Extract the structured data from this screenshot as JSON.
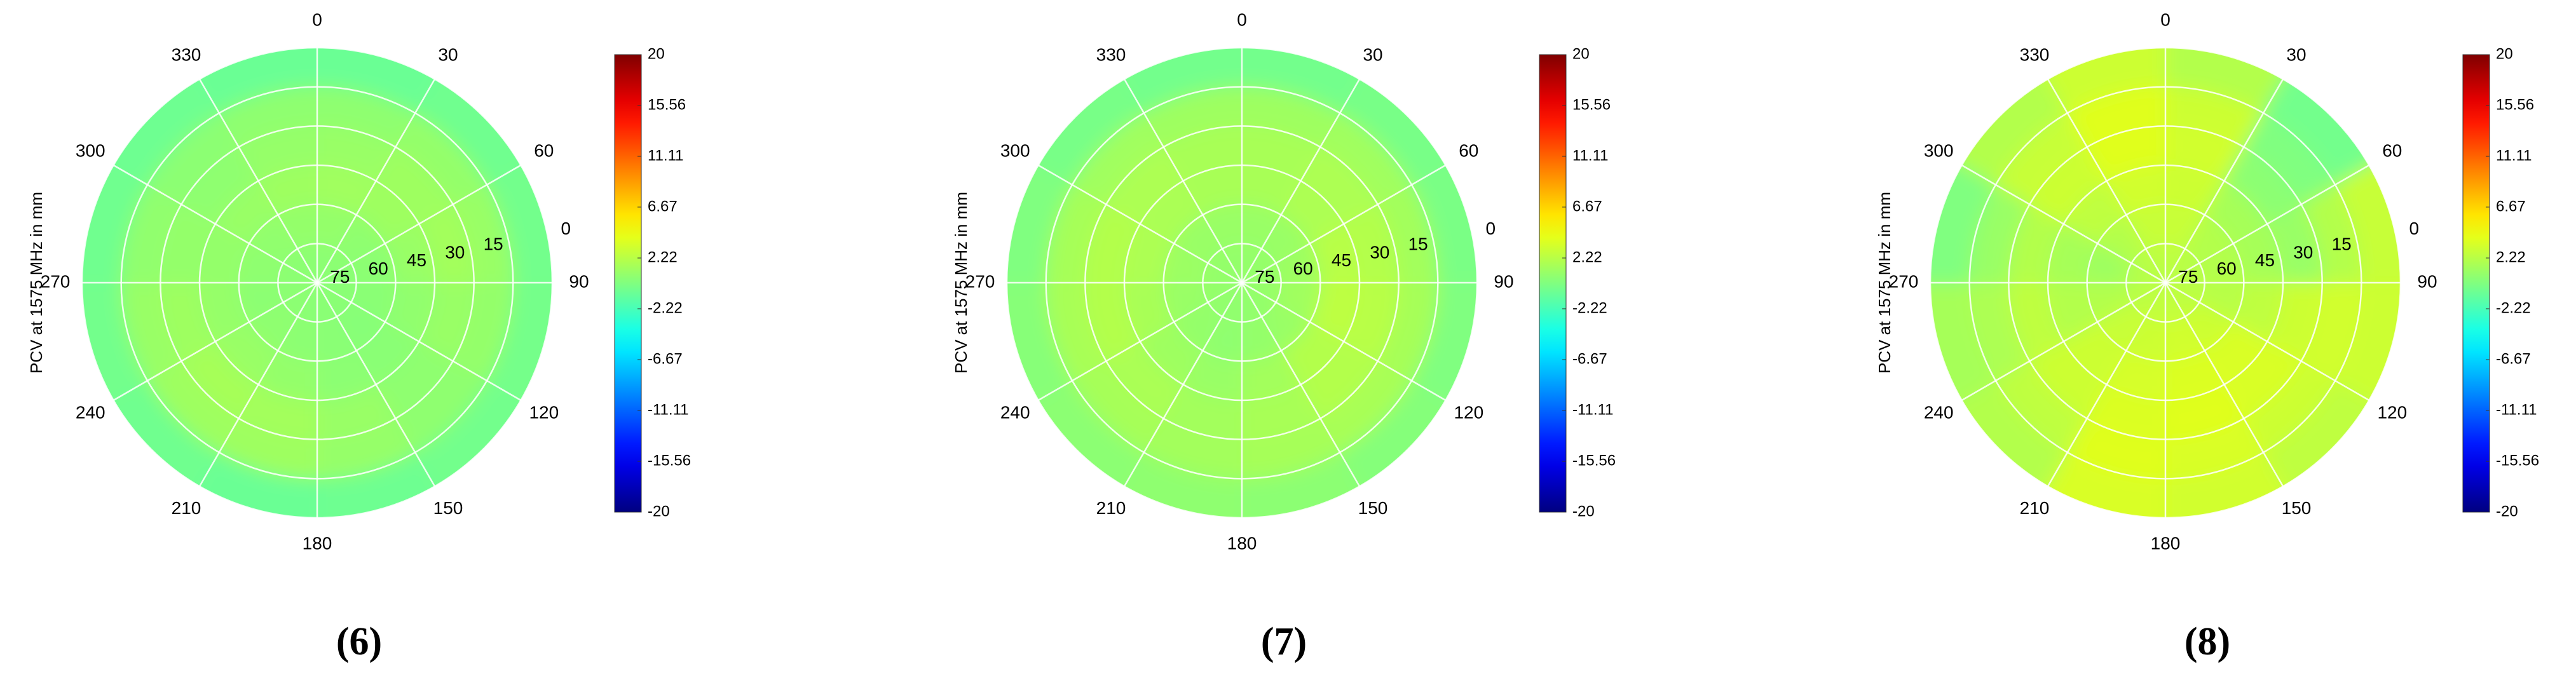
{
  "chart_data": [
    {
      "type": "polar_heatmap",
      "caption": "(6)",
      "ylabel": "PCV at 1575 MHz in mm",
      "colormap": "jet",
      "grid": true,
      "azimuth_ticks": [
        0,
        30,
        60,
        90,
        120,
        150,
        180,
        210,
        240,
        270,
        300,
        330
      ],
      "elevation_ticks": [
        0,
        15,
        30,
        45,
        60,
        75
      ],
      "rlim": [
        90,
        0
      ],
      "zlim": [
        -20,
        20
      ],
      "zticks": [
        20,
        15.56,
        11.11,
        6.67,
        2.22,
        -2.22,
        -6.67,
        -11.11,
        -15.56,
        -20
      ],
      "values": [
        [
          -0.8,
          -0.6,
          -0.5,
          -0.4,
          -0.5,
          -0.7,
          -0.8,
          -0.6,
          -0.5,
          -0.6,
          -0.7,
          -0.8
        ],
        [
          0.6,
          0.8,
          1.0,
          0.8,
          0.6,
          0.9,
          1.2,
          1.2,
          1.0,
          0.7,
          0.5,
          0.6
        ],
        [
          1.0,
          1.2,
          1.4,
          1.0,
          0.6,
          1.0,
          1.4,
          1.5,
          1.2,
          0.8,
          0.6,
          0.9
        ],
        [
          1.3,
          1.2,
          1.0,
          0.7,
          0.4,
          0.5,
          0.8,
          1.0,
          0.9,
          0.8,
          1.0,
          1.2
        ],
        [
          0.8,
          0.6,
          0.5,
          0.4,
          0.3,
          0.4,
          0.5,
          0.6,
          0.5,
          0.6,
          0.7,
          0.8
        ],
        [
          0.5,
          0.5,
          0.4,
          0.4,
          0.4,
          0.4,
          0.4,
          0.5,
          0.5,
          0.5,
          0.5,
          0.5
        ]
      ]
    },
    {
      "type": "polar_heatmap",
      "caption": "(7)",
      "ylabel": "PCV at 1575 MHz in mm",
      "colormap": "jet",
      "grid": true,
      "azimuth_ticks": [
        0,
        30,
        60,
        90,
        120,
        150,
        180,
        210,
        240,
        270,
        300,
        330
      ],
      "elevation_ticks": [
        0,
        15,
        30,
        45,
        60,
        75
      ],
      "rlim": [
        90,
        0
      ],
      "zlim": [
        -20,
        20
      ],
      "zticks": [
        20,
        15.56,
        11.11,
        6.67,
        2.22,
        -2.22,
        -6.67,
        -11.11,
        -15.56,
        -20
      ],
      "values": [
        [
          -0.5,
          -0.3,
          -0.2,
          0.0,
          0.2,
          0.5,
          0.6,
          0.5,
          0.3,
          0.0,
          -0.3,
          -0.5
        ],
        [
          1.2,
          1.3,
          1.4,
          1.5,
          1.6,
          1.5,
          1.4,
          1.5,
          1.6,
          1.5,
          1.3,
          1.2
        ],
        [
          1.6,
          1.8,
          2.0,
          2.2,
          2.0,
          1.6,
          1.4,
          1.7,
          2.0,
          2.0,
          1.8,
          1.6
        ],
        [
          1.6,
          1.8,
          2.2,
          2.4,
          2.0,
          1.4,
          1.0,
          1.2,
          1.6,
          1.8,
          1.7,
          1.6
        ],
        [
          1.0,
          1.0,
          1.2,
          1.3,
          1.0,
          0.8,
          0.6,
          0.8,
          1.0,
          1.1,
          1.0,
          1.0
        ],
        [
          0.8,
          0.8,
          0.9,
          0.9,
          0.8,
          0.7,
          0.7,
          0.7,
          0.8,
          0.8,
          0.8,
          0.8
        ]
      ]
    },
    {
      "type": "polar_heatmap",
      "caption": "(8)",
      "ylabel": "PCV at 1575 MHz in mm",
      "colormap": "jet",
      "grid": true,
      "azimuth_ticks": [
        0,
        30,
        60,
        90,
        120,
        150,
        180,
        210,
        240,
        270,
        300,
        330
      ],
      "elevation_ticks": [
        0,
        15,
        30,
        45,
        60,
        75
      ],
      "rlim": [
        90,
        0
      ],
      "zlim": [
        -20,
        20
      ],
      "zticks": [
        20,
        15.56,
        11.11,
        6.67,
        2.22,
        -2.22,
        -6.67,
        -11.11,
        -15.56,
        -20
      ],
      "values": [
        [
          2.0,
          -0.5,
          2.8,
          3.0,
          2.5,
          3.2,
          3.5,
          2.0,
          1.5,
          0.0,
          2.0,
          3.0
        ],
        [
          3.0,
          0.0,
          2.0,
          3.2,
          3.0,
          3.5,
          3.8,
          2.5,
          1.8,
          1.0,
          2.8,
          3.8
        ],
        [
          3.2,
          0.5,
          1.0,
          3.0,
          3.5,
          3.8,
          3.6,
          3.0,
          2.5,
          2.0,
          3.0,
          3.8
        ],
        [
          3.0,
          1.5,
          1.5,
          2.5,
          3.5,
          3.6,
          3.4,
          3.0,
          2.0,
          1.5,
          2.5,
          3.2
        ],
        [
          2.8,
          2.0,
          2.0,
          2.2,
          3.0,
          3.2,
          3.0,
          2.8,
          2.0,
          1.2,
          2.0,
          2.8
        ],
        [
          2.5,
          2.2,
          2.2,
          2.3,
          2.5,
          2.6,
          2.6,
          2.5,
          2.2,
          2.0,
          2.2,
          2.4
        ]
      ]
    }
  ]
}
